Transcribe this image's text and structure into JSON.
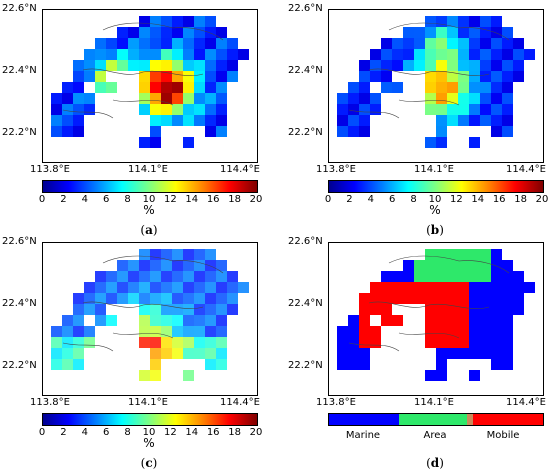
{
  "panels": [
    {
      "id": "a",
      "caption": "(a)",
      "legend": "continuous"
    },
    {
      "id": "b",
      "caption": "(b)",
      "legend": "continuous"
    },
    {
      "id": "c",
      "caption": "(c)",
      "legend": "continuous"
    },
    {
      "id": "d",
      "caption": "(d)",
      "legend": "categorical"
    }
  ],
  "lat_labels": [
    "22.6°N",
    "22.4°N",
    "22.2°N"
  ],
  "lon_labels": [
    "113.8°E",
    "114.1°E",
    "114.4°E"
  ],
  "colorbar": {
    "ticks": [
      "0",
      "2",
      "4",
      "6",
      "8",
      "10",
      "12",
      "14",
      "16",
      "18",
      "20"
    ],
    "unit": "%",
    "min": 0,
    "max": 20
  },
  "categorical_legend": {
    "categories": [
      "Marine",
      "Area",
      "Mobile"
    ],
    "colors": {
      "Marine": "#0000ff",
      "Area": "#2ee86a",
      "Mobile": "#ff0000",
      "Mixed": "#c98a5a"
    }
  }
}
